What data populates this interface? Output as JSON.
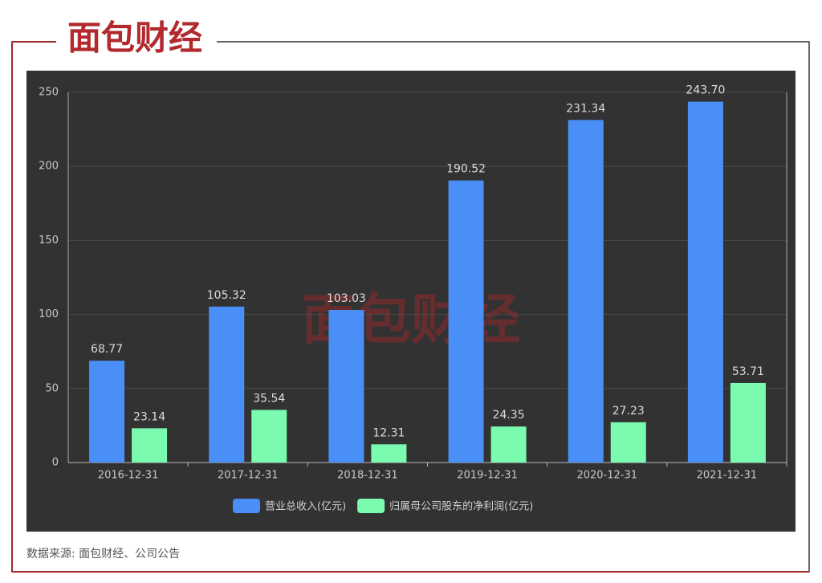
{
  "logo": "面包财经",
  "chart_data": {
    "type": "bar",
    "categories": [
      "2016-12-31",
      "2017-12-31",
      "2018-12-31",
      "2019-12-31",
      "2020-12-31",
      "2021-12-31"
    ],
    "series": [
      {
        "name": "营业总收入(亿元)",
        "color": "#4a8ff7",
        "values": [
          68.77,
          105.32,
          103.03,
          190.52,
          231.34,
          243.7
        ],
        "value_labels": [
          "68.77",
          "105.32",
          "103.03",
          "190.52",
          "231.34",
          "243.70"
        ]
      },
      {
        "name": "归属母公司股东的净利润(亿元)",
        "color": "#7afbb0",
        "values": [
          23.14,
          35.54,
          12.31,
          24.35,
          27.23,
          53.71
        ]
      }
    ],
    "ylim": [
      0,
      250
    ],
    "yticks": [
      0,
      50,
      100,
      150,
      200,
      250
    ],
    "grid": true,
    "legend": "bottom",
    "source": "数据来源: 面包财经、公司公告"
  }
}
